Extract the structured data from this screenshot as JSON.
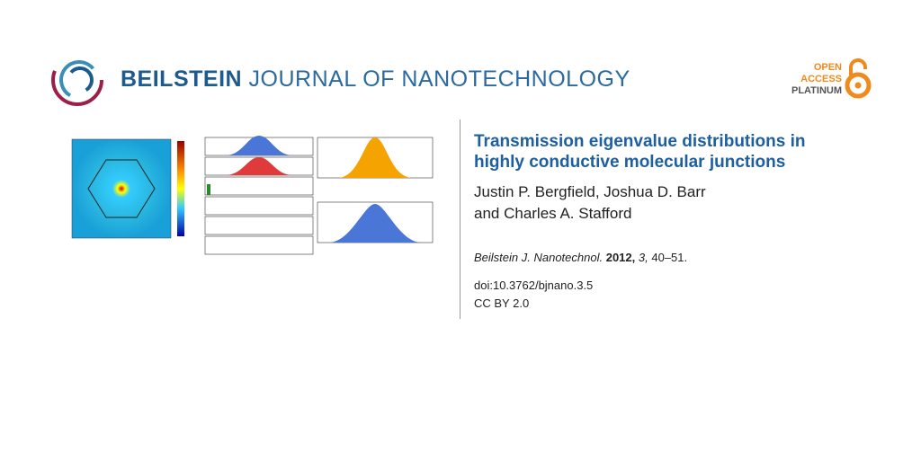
{
  "header": {
    "publisher": "BEILSTEIN",
    "journal": "JOURNAL OF NANOTECHNOLOGY",
    "badge": {
      "line1": "OPEN",
      "line2": "ACCESS",
      "line3": "PLATINUM"
    }
  },
  "article": {
    "title_lines": [
      "Transmission eigenvalue distributions in",
      "highly conductive molecular junctions"
    ],
    "author_lines": [
      "Justin P. Bergfield, Joshua D. Barr",
      "and Charles A. Stafford"
    ],
    "citation": {
      "journal": "Beilstein J. Nanotechnol.",
      "year": "2012,",
      "volume": "3,",
      "pages": "40–51."
    },
    "doi": "doi:10.3762/bjnano.3.5",
    "license": "CC BY 2.0"
  }
}
